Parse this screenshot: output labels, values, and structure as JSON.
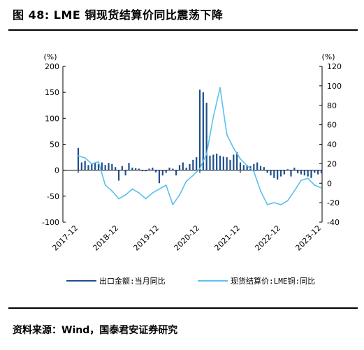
{
  "header": {
    "title": "图 48: LME 铜现货结算价同比震荡下降"
  },
  "footer": {
    "source": "资料来源：Wind，国泰君安证券研究"
  },
  "chart_data": {
    "type": "bar+line",
    "colors": {
      "bars": "#1f4e8c",
      "line": "#5bc0ee"
    },
    "left_axis": {
      "unit": "(%)",
      "ylim": [
        -100,
        200
      ],
      "ticks": [
        "200",
        "150",
        "100",
        "50",
        "0",
        "-50",
        "-100"
      ]
    },
    "right_axis": {
      "unit": "(%)",
      "ylim": [
        -40,
        120
      ],
      "ticks": [
        "120",
        "100",
        "80",
        "60",
        "40",
        "20",
        "0",
        "-20",
        "-40"
      ]
    },
    "x_ticks": [
      "2017-12",
      "2018-12",
      "2019-12",
      "2020-12",
      "2021-12",
      "2022-12",
      "2023-12"
    ],
    "series": [
      {
        "name": "出口金额:当月同比",
        "axis": "left",
        "type": "bar",
        "x": [
          "2017-12",
          "2018-01",
          "2018-02",
          "2018-03",
          "2018-04",
          "2018-05",
          "2018-06",
          "2018-07",
          "2018-08",
          "2018-09",
          "2018-10",
          "2018-11",
          "2018-12",
          "2019-01",
          "2019-02",
          "2019-03",
          "2019-04",
          "2019-05",
          "2019-06",
          "2019-07",
          "2019-08",
          "2019-09",
          "2019-10",
          "2019-11",
          "2019-12",
          "2020-01",
          "2020-02",
          "2020-03",
          "2020-04",
          "2020-05",
          "2020-06",
          "2020-07",
          "2020-08",
          "2020-09",
          "2020-10",
          "2020-11",
          "2020-12",
          "2021-01",
          "2021-02",
          "2021-03",
          "2021-04",
          "2021-05",
          "2021-06",
          "2021-07",
          "2021-08",
          "2021-09",
          "2021-10",
          "2021-11",
          "2021-12",
          "2022-01",
          "2022-02",
          "2022-03",
          "2022-04",
          "2022-05",
          "2022-06",
          "2022-07",
          "2022-08",
          "2022-09",
          "2022-10",
          "2022-11",
          "2022-12",
          "2023-01",
          "2023-02",
          "2023-03",
          "2023-04",
          "2023-05",
          "2023-06",
          "2023-07",
          "2023-08",
          "2023-09",
          "2023-10",
          "2023-11",
          "2023-12"
        ],
        "values": [
          43,
          15,
          18,
          10,
          12,
          14,
          12,
          15,
          10,
          14,
          12,
          6,
          -20,
          8,
          -10,
          14,
          5,
          4,
          3,
          -2,
          -2,
          3,
          5,
          -4,
          -25,
          -10,
          -5,
          5,
          3,
          -10,
          10,
          15,
          5,
          12,
          20,
          25,
          155,
          150,
          130,
          28,
          30,
          32,
          28,
          26,
          25,
          20,
          30,
          35,
          15,
          10,
          10,
          8,
          12,
          15,
          8,
          6,
          -5,
          -10,
          -15,
          -18,
          -12,
          -8,
          2,
          -12,
          5,
          -6,
          -8,
          -10,
          -12,
          -15,
          -5,
          -8,
          -6
        ]
      },
      {
        "name": "现货结算价:LME铜:同比",
        "axis": "right",
        "type": "line",
        "x": [
          "2017-12",
          "2018-02",
          "2018-04",
          "2018-06",
          "2018-08",
          "2018-10",
          "2018-12",
          "2019-02",
          "2019-04",
          "2019-06",
          "2019-08",
          "2019-10",
          "2019-12",
          "2020-02",
          "2020-04",
          "2020-06",
          "2020-08",
          "2020-10",
          "2020-12",
          "2021-02",
          "2021-04",
          "2021-06",
          "2021-08",
          "2021-10",
          "2021-12",
          "2022-02",
          "2022-04",
          "2022-06",
          "2022-08",
          "2022-10",
          "2022-12",
          "2023-02",
          "2023-04",
          "2023-06",
          "2023-08",
          "2023-10",
          "2023-12"
        ],
        "values": [
          28,
          26,
          20,
          22,
          -2,
          -8,
          -16,
          -12,
          -6,
          -10,
          -16,
          -10,
          -6,
          -2,
          -22,
          -12,
          2,
          8,
          15,
          30,
          68,
          98,
          50,
          36,
          25,
          18,
          12,
          -8,
          -22,
          -20,
          -22,
          -18,
          -8,
          3,
          5,
          -2,
          -5
        ]
      }
    ]
  }
}
